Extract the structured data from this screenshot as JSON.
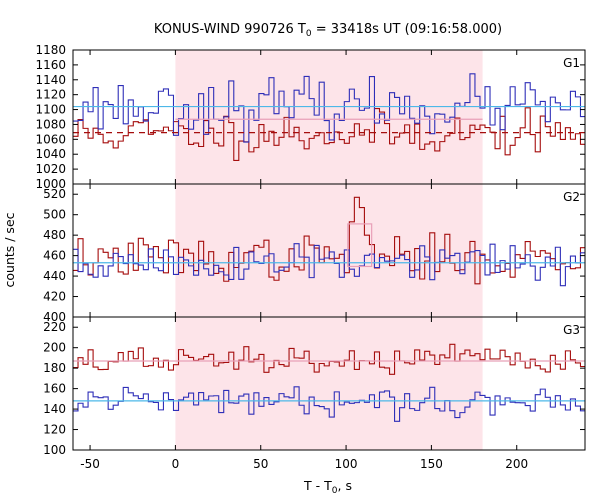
{
  "chart_data": {
    "type": "line",
    "title": {
      "prefix": "KONUS-WIND 990726 T",
      "subscript": "0",
      "suffix": " = 33418s UT (09:16:58.000)"
    },
    "xlabel": {
      "prefix": "T - T",
      "subscript": "0",
      "suffix": ", s"
    },
    "ylabel": "counts / sec",
    "xlim": [
      -60,
      240
    ],
    "xticks": [
      -50,
      0,
      50,
      100,
      150,
      200
    ],
    "bin_width": 2.944,
    "highlight_interval": [
      0,
      180
    ],
    "colors": {
      "highlight": "#fde4e9",
      "red_series": "#a50d0d",
      "blue_series": "#2e2eb8",
      "blue_level": "#4db8e8",
      "red_level": "#e8a0b8"
    },
    "panels": [
      {
        "label": "G1",
        "ylim": [
          1000,
          1180
        ],
        "yticks": [
          1000,
          1020,
          1040,
          1060,
          1080,
          1100,
          1120,
          1140,
          1160,
          1180
        ],
        "blue_level": 1104,
        "red_level_dashed": 1069,
        "red_level_box": {
          "x": [
            0,
            180
          ],
          "y": 1087
        },
        "series": [
          {
            "color": "red_series",
            "mean": 1068,
            "amp": 18,
            "seed": 11
          },
          {
            "color": "blue_series",
            "mean": 1104,
            "amp": 22,
            "seed": 23
          }
        ]
      },
      {
        "label": "G2",
        "ylim": [
          400,
          530
        ],
        "yticks": [
          400,
          420,
          440,
          460,
          480,
          500,
          520
        ],
        "blue_level": 453,
        "red_level_box": {
          "x": [
            101,
            115
          ],
          "y": 491
        },
        "series": [
          {
            "color": "red_series",
            "mean": 457,
            "amp": 13,
            "seed": 37,
            "peak": [
              {
                "x": 103,
                "y": 493
              },
              {
                "x": 106,
                "y": 517
              },
              {
                "x": 109,
                "y": 507
              },
              {
                "x": 112,
                "y": 480
              }
            ]
          },
          {
            "color": "blue_series",
            "mean": 452,
            "amp": 13,
            "seed": 51
          }
        ]
      },
      {
        "label": "G3",
        "ylim": [
          100,
          230
        ],
        "yticks": [
          100,
          120,
          140,
          160,
          180,
          200,
          220
        ],
        "blue_level": 148,
        "red_level": 187,
        "series": [
          {
            "color": "red_series",
            "mean": 187,
            "amp": 8,
            "seed": 67
          },
          {
            "color": "blue_series",
            "mean": 148,
            "amp": 8,
            "seed": 79
          }
        ]
      }
    ]
  }
}
